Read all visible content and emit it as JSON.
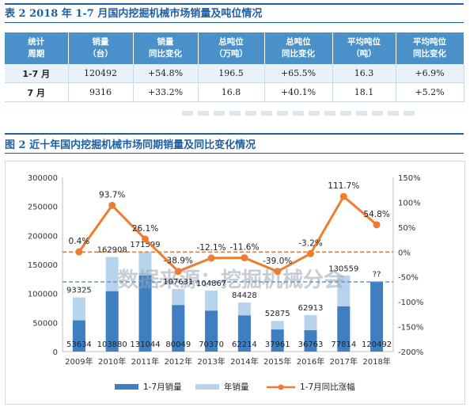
{
  "table": {
    "title": "表 2  2018 年 1-7 月国内挖掘机械市场销量及吨位情况",
    "headers": [
      [
        "统计",
        "周期"
      ],
      [
        "销量",
        "（台）"
      ],
      [
        "销量",
        "同比变化"
      ],
      [
        "总吨位",
        "（万吨）"
      ],
      [
        "总吨位",
        "同比变化"
      ],
      [
        "平均吨位",
        "（吨）"
      ],
      [
        "平均吨位",
        "同比变化"
      ]
    ],
    "rows": [
      [
        "1-7 月",
        "120492",
        "+54.8%",
        "196.5",
        "+65.5%",
        "16.3",
        "+6.9%"
      ],
      [
        "7 月",
        "9316",
        "+33.2%",
        "16.8",
        "+40.1%",
        "18.1",
        "+5.2%"
      ]
    ]
  },
  "chart_title": "图 2   近十年国内挖掘机械市场同期销量及同比变化情况",
  "watermark": "数据来源：挖掘机械分会",
  "chart_data": {
    "type": "bar",
    "categories": [
      "2009年",
      "2010年",
      "2011年",
      "2012年",
      "2013年",
      "2014年",
      "2015年",
      "2016年",
      "2017年",
      "2018年"
    ],
    "series": [
      {
        "name": "1-7月销量",
        "type": "bar",
        "color": "#3f7fc1",
        "values": [
          53634,
          103880,
          131044,
          80049,
          70370,
          62214,
          37961,
          36763,
          77814,
          120492
        ]
      },
      {
        "name": "年销量",
        "type": "bar",
        "color": "#b8d3ec",
        "values": [
          93325,
          162908,
          171599,
          107631,
          104867,
          84428,
          52875,
          62913,
          130559,
          null
        ],
        "labels": [
          "93325",
          "162908",
          "171599",
          "107631",
          "104867",
          "84428",
          "52875",
          "62913",
          "130559",
          "??"
        ]
      },
      {
        "name": "1-7月同比涨幅",
        "type": "line",
        "axis": "right",
        "color": "#ed7d31",
        "values": [
          0.4,
          93.7,
          26.1,
          -38.9,
          -12.1,
          -11.6,
          -39.0,
          -3.2,
          111.7,
          54.8
        ],
        "labels": [
          "0.4%",
          "93.7%",
          "26.1%",
          "-38.9%",
          "-12.1%",
          "-11.6%",
          "-39.0%",
          "-3.2%",
          "111.7%",
          "54.8%"
        ]
      }
    ],
    "left_axis": {
      "min": 0,
      "max": 300000,
      "ticks": [
        "0",
        "50000",
        "100000",
        "150000",
        "200000",
        "250000",
        "300000"
      ]
    },
    "right_axis": {
      "min": -200,
      "max": 150,
      "ticks": [
        "-200%",
        "-150%",
        "-100%",
        "-50%",
        "0%",
        "50%",
        "100%",
        "150%"
      ]
    },
    "reference_lines": [
      {
        "axis": "right",
        "value": 0,
        "color": "#ed7d31"
      },
      {
        "axis": "left",
        "value": 120000,
        "color": "#5b9bd5"
      }
    ],
    "legend_position": "bottom"
  }
}
